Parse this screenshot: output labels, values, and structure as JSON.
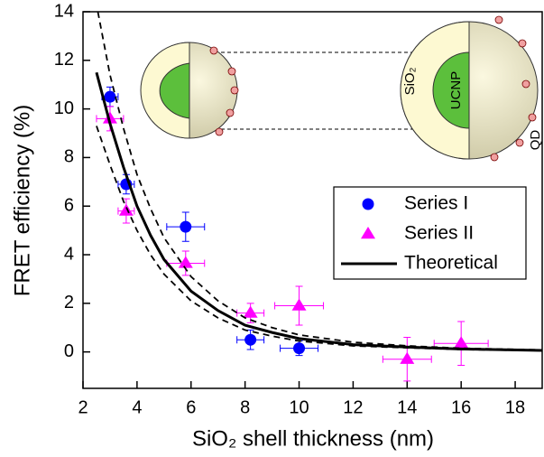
{
  "chart_data": {
    "type": "scatter",
    "xlabel": "SiO₂ shell thickness (nm)",
    "ylabel": "FRET efficiency (%)",
    "xlim": [
      2,
      19
    ],
    "ylim": [
      -1.5,
      14
    ],
    "xticks": [
      2,
      4,
      6,
      8,
      10,
      12,
      14,
      16,
      18
    ],
    "yticks": [
      0,
      2,
      4,
      6,
      8,
      10,
      12,
      14
    ],
    "legend": "center-right",
    "annotations": [
      "SiO₂",
      "UCNP",
      "QD"
    ],
    "series": [
      {
        "name": "Series I",
        "style": "marker",
        "marker": "circle",
        "color": "#0000ff",
        "x": [
          3,
          3.6,
          5.8,
          8.2,
          10
        ],
        "values": [
          10.5,
          6.9,
          5.15,
          0.5,
          0.15
        ],
        "xerr": [
          0.3,
          0.3,
          0.7,
          0.5,
          0.7
        ],
        "yerr": [
          0.4,
          0.4,
          0.6,
          0.4,
          0.3
        ]
      },
      {
        "name": "Series II",
        "style": "marker",
        "marker": "triangle",
        "color": "#ff00ff",
        "x": [
          3,
          3.6,
          5.8,
          8.2,
          10,
          14,
          16
        ],
        "values": [
          9.6,
          5.8,
          3.65,
          1.6,
          1.9,
          -0.3,
          0.35
        ],
        "xerr": [
          0.5,
          0.3,
          0.7,
          0.5,
          0.9,
          0.9,
          1.0
        ],
        "yerr": [
          0.5,
          0.5,
          0.5,
          0.4,
          0.8,
          0.9,
          0.9
        ]
      },
      {
        "name": "Theoretical",
        "style": "line",
        "color": "#000000",
        "x": [
          2.5,
          3,
          3.5,
          4,
          4.5,
          5,
          6,
          7,
          8,
          9,
          10,
          12,
          14,
          16,
          19
        ],
        "values": [
          11.5,
          9.4,
          7.6,
          6.0,
          4.8,
          3.8,
          2.5,
          1.7,
          1.1,
          0.8,
          0.55,
          0.3,
          0.2,
          0.12,
          0.06
        ]
      },
      {
        "style": "dashed",
        "color": "#000000",
        "x": [
          2.55,
          3,
          3.5,
          4,
          4.5,
          5,
          6,
          7,
          8,
          9,
          10,
          12,
          14,
          16,
          19
        ],
        "values": [
          14,
          11.4,
          9.2,
          7.3,
          5.9,
          4.7,
          3.1,
          2.1,
          1.4,
          1.0,
          0.7,
          0.4,
          0.25,
          0.15,
          0.08
        ]
      },
      {
        "style": "dashed",
        "color": "#000000",
        "x": [
          2.5,
          3,
          3.5,
          4,
          4.5,
          5,
          6,
          7,
          8,
          9,
          10,
          12,
          14,
          16,
          19
        ],
        "values": [
          9.3,
          7.7,
          6.2,
          5.0,
          4.0,
          3.2,
          2.1,
          1.4,
          0.9,
          0.65,
          0.45,
          0.25,
          0.17,
          0.1,
          0.05
        ]
      }
    ]
  }
}
